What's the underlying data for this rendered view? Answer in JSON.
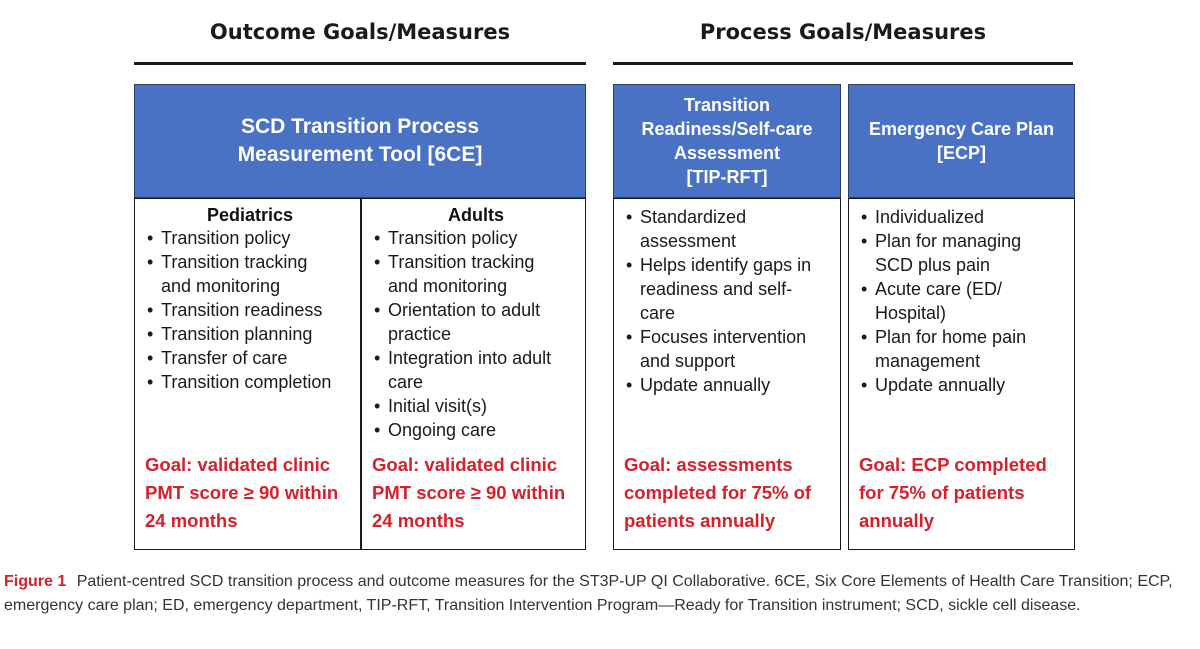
{
  "headings": {
    "outcome": "Outcome Goals/Measures",
    "process": "Process Goals/Measures"
  },
  "boxes": {
    "sixce": {
      "title_lines": [
        "SCD Transition Process",
        "Measurement Tool [6CE]"
      ],
      "pediatrics": {
        "title": "Pediatrics",
        "items": [
          "Transition policy",
          "Transition tracking and monitoring",
          "Transition readiness",
          "Transition planning",
          "Transfer of care",
          "Transition completion"
        ],
        "goal": "Goal: validated clinic PMT score ≥ 90 within 24 months"
      },
      "adults": {
        "title": "Adults",
        "items": [
          "Transition policy",
          "Transition tracking and monitoring",
          "Orientation to adult practice",
          "Integration into adult care",
          "Initial visit(s)",
          "Ongoing care"
        ],
        "goal": "Goal: validated clinic PMT score ≥ 90 within 24 months"
      }
    },
    "tiprft": {
      "title_lines": [
        "Transition",
        "Readiness/Self-care",
        "Assessment",
        "[TIP-RFT]"
      ],
      "items": [
        "Standardized assessment",
        "Helps identify gaps in readiness and self-care",
        "Focuses intervention and support",
        "Update annually"
      ],
      "goal": "Goal: assessments completed for 75% of patients annually"
    },
    "ecp": {
      "title_lines": [
        "Emergency Care Plan",
        "[ECP]"
      ],
      "items": [
        "Individualized",
        "Plan for managing SCD plus pain",
        "Acute care (ED/ Hospital)",
        "Plan for home pain management",
        "Update annually"
      ],
      "goal": "Goal: ECP completed for 75% of patients annually"
    }
  },
  "caption": {
    "label": "Figure 1",
    "text": "Patient-centred SCD transition process and outcome measures for the ST3P-UP QI Collaborative. 6CE, Six Core Elements of Health Care Transition; ECP, emergency care plan; ED, emergency department, TIP-RFT, Transition Intervention Program—Ready for Transition instrument; SCD, sickle cell disease."
  },
  "colors": {
    "header_blue": "#4a72c4",
    "goal_red": "#d8202a",
    "caption_label_red": "#d8202a"
  }
}
